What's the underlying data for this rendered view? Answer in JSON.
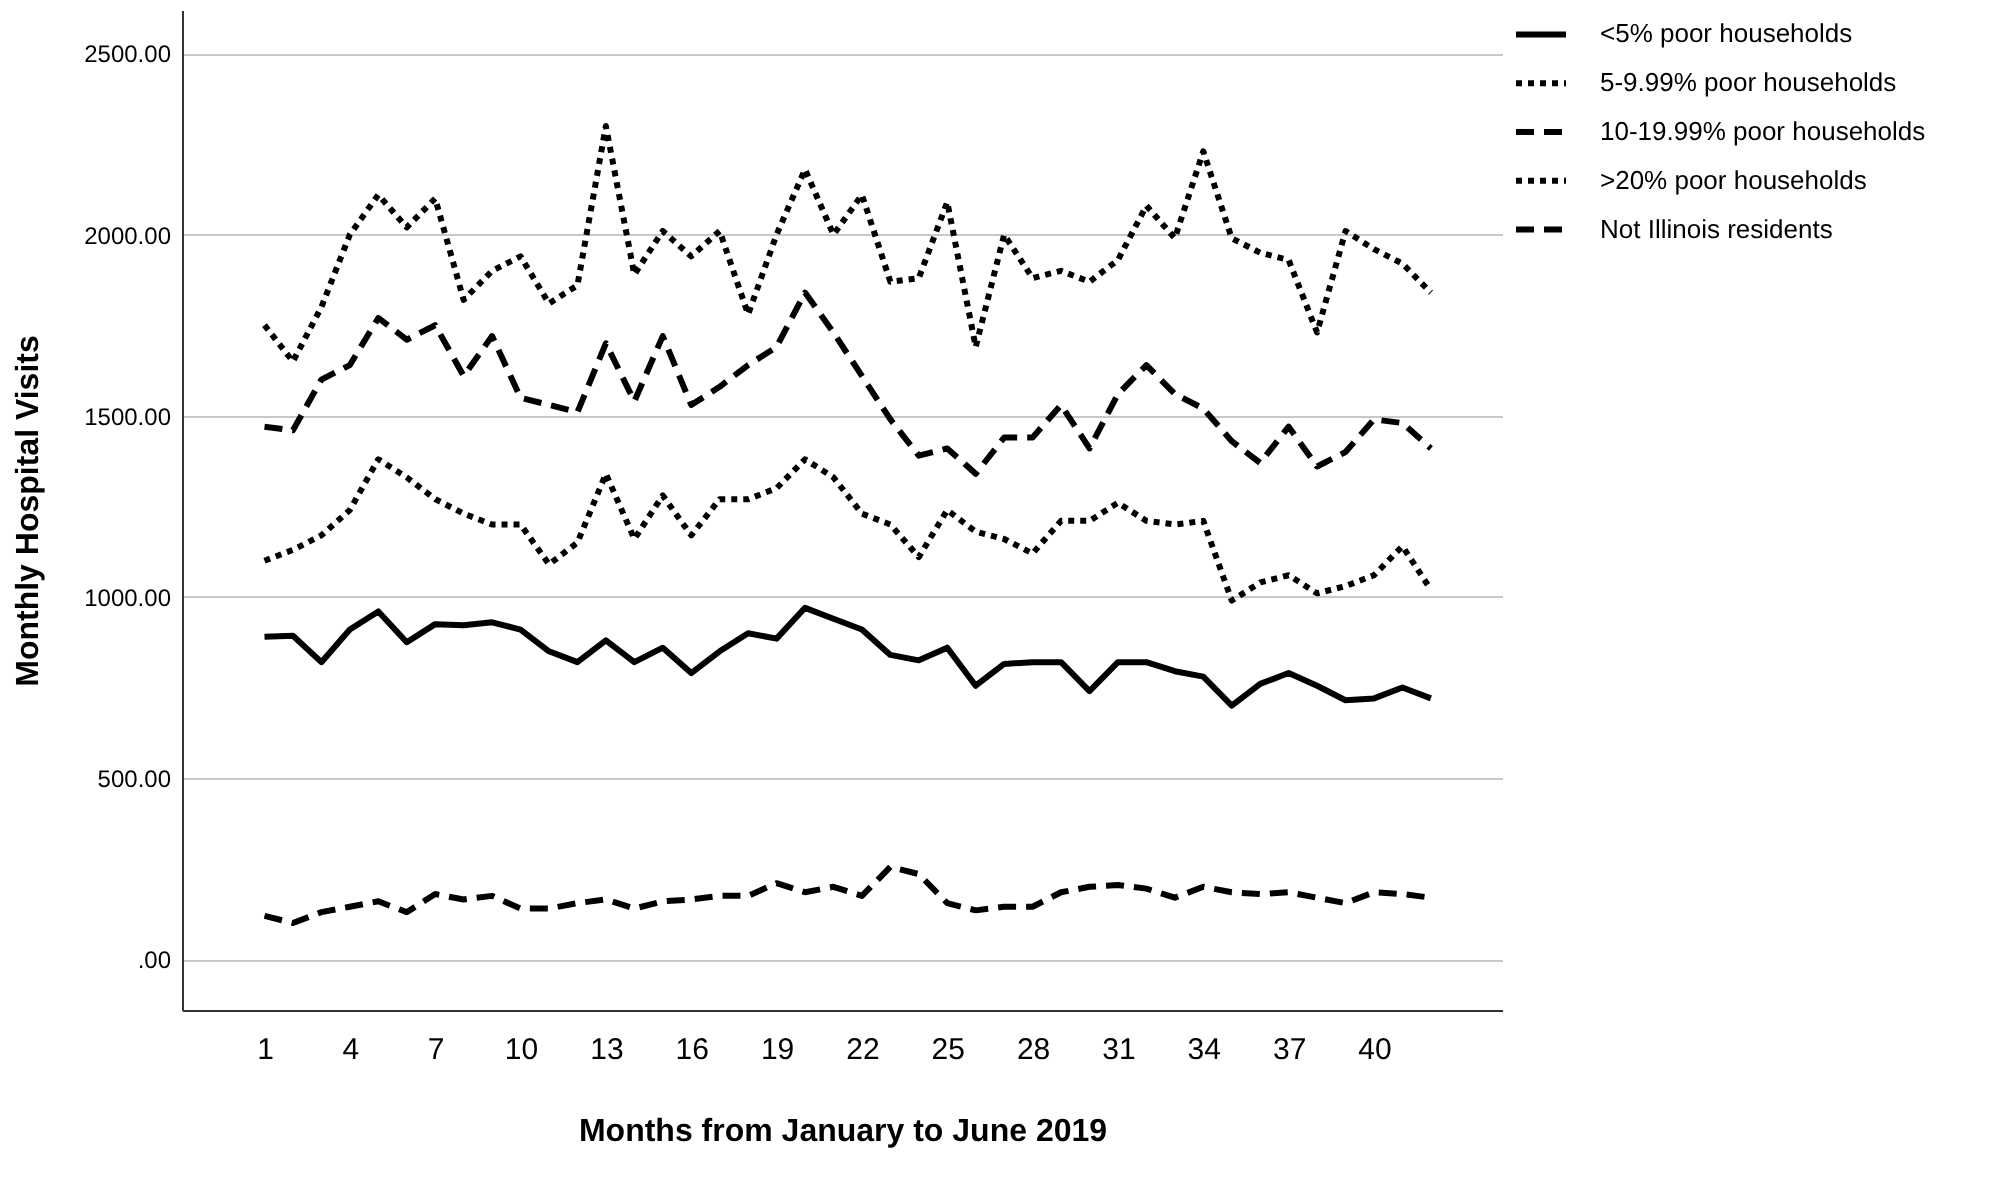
{
  "chart_data": {
    "type": "line",
    "xlabel": "Months from January to June 2019",
    "ylabel": "Monthly Hospital Visits",
    "x": [
      1,
      2,
      3,
      4,
      5,
      6,
      7,
      8,
      9,
      10,
      11,
      12,
      13,
      14,
      15,
      16,
      17,
      18,
      19,
      20,
      21,
      22,
      23,
      24,
      25,
      26,
      27,
      28,
      29,
      30,
      31,
      32,
      33,
      34,
      35,
      36,
      37,
      38,
      39,
      40,
      41,
      42
    ],
    "xlim": [
      -1.9,
      44.5
    ],
    "xticks": [
      1,
      4,
      7,
      10,
      13,
      16,
      19,
      22,
      25,
      28,
      31,
      34,
      37,
      40
    ],
    "ylim": [
      -140,
      2620
    ],
    "yticks": [
      {
        "value": 0,
        "label": ".00"
      },
      {
        "value": 500,
        "label": "500.00"
      },
      {
        "value": 1000,
        "label": "1000.00"
      },
      {
        "value": 1500,
        "label": "1500.00"
      },
      {
        "value": 2000,
        "label": "2000.00"
      },
      {
        "value": 2500,
        "label": "2500.00"
      }
    ],
    "grid": "y",
    "legend": "top right",
    "marker": "none",
    "series": [
      {
        "name": "<5% poor households",
        "color": "#000000",
        "line_style": "solid",
        "values": [
          890,
          893,
          820,
          910,
          960,
          875,
          925,
          922,
          930,
          910,
          850,
          820,
          880,
          820,
          860,
          790,
          850,
          900,
          885,
          970,
          940,
          910,
          840,
          825,
          860,
          755,
          815,
          820,
          820,
          740,
          820,
          820,
          795,
          780,
          700,
          760,
          790,
          755,
          715,
          720,
          750,
          720
        ]
      },
      {
        "name": "5-9.99% poor households",
        "color": "#000000",
        "line_style": "dotted",
        "values": [
          1100,
          1130,
          1170,
          1240,
          1380,
          1330,
          1270,
          1230,
          1200,
          1200,
          1090,
          1150,
          1340,
          1160,
          1280,
          1170,
          1270,
          1270,
          1300,
          1380,
          1330,
          1230,
          1200,
          1110,
          1240,
          1180,
          1160,
          1120,
          1210,
          1210,
          1260,
          1210,
          1200,
          1210,
          990,
          1040,
          1060,
          1010,
          1030,
          1060,
          1140,
          1020
        ]
      },
      {
        "name": "10-19.99% poor households",
        "color": "#000000",
        "line_style": "dashed",
        "values": [
          1470,
          1460,
          1600,
          1640,
          1770,
          1710,
          1750,
          1610,
          1720,
          1550,
          1530,
          1510,
          1700,
          1540,
          1720,
          1530,
          1580,
          1640,
          1690,
          1840,
          1730,
          1610,
          1490,
          1390,
          1410,
          1340,
          1440,
          1440,
          1530,
          1410,
          1560,
          1640,
          1560,
          1520,
          1430,
          1370,
          1470,
          1360,
          1400,
          1490,
          1480,
          1410
        ]
      },
      {
        "name": ">20% poor households",
        "color": "#000000",
        "line_style": "dotted",
        "values": [
          1750,
          1650,
          1800,
          2000,
          2110,
          2020,
          2100,
          1820,
          1900,
          1940,
          1810,
          1860,
          2300,
          1890,
          2010,
          1940,
          2010,
          1780,
          2000,
          2180,
          2000,
          2110,
          1870,
          1880,
          2090,
          1690,
          2000,
          1880,
          1900,
          1870,
          1930,
          2080,
          1990,
          2230,
          1990,
          1950,
          1930,
          1730,
          2010,
          1960,
          1920,
          1840
        ]
      },
      {
        "name": "Not Illinois residents",
        "color": "#000000",
        "line_style": "dashed",
        "values": [
          120,
          100,
          130,
          145,
          160,
          130,
          180,
          165,
          175,
          140,
          140,
          155,
          165,
          140,
          160,
          165,
          175,
          175,
          210,
          185,
          200,
          175,
          255,
          235,
          155,
          135,
          145,
          145,
          185,
          200,
          205,
          195,
          170,
          200,
          185,
          180,
          185,
          170,
          155,
          185,
          180,
          170
        ]
      }
    ]
  }
}
